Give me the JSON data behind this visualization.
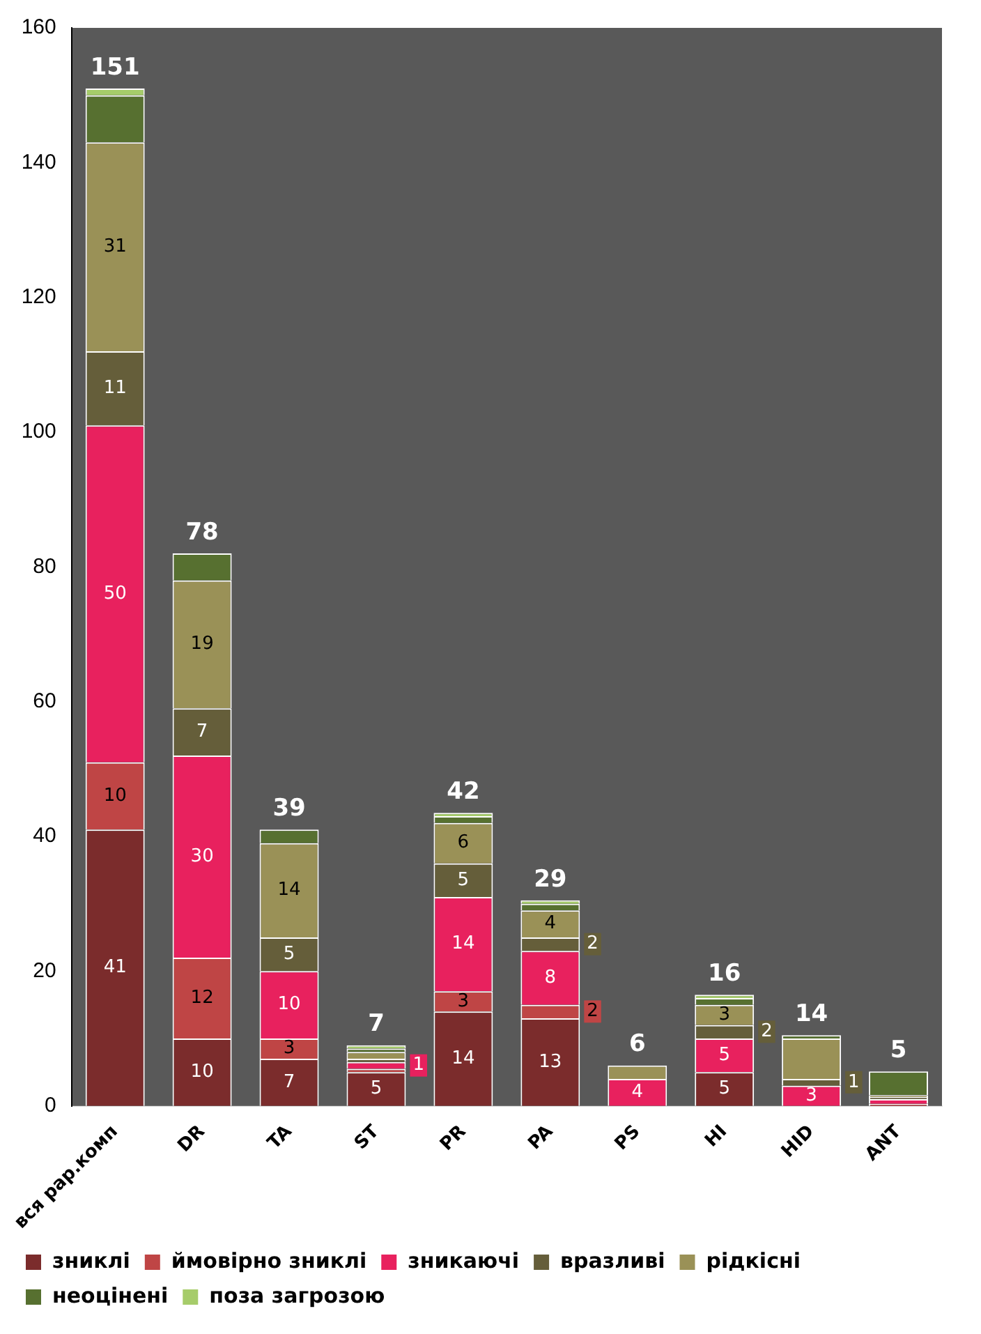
{
  "chart_data": {
    "type": "bar",
    "stacked": true,
    "categories": [
      "вся рар.комп",
      "DR",
      "TA",
      "ST",
      "PR",
      "PA",
      "PS",
      "HI",
      "HID",
      "ANT"
    ],
    "series": [
      {
        "name": "зниклі",
        "color": "#7b2c2c",
        "values": [
          41,
          10,
          7,
          5,
          14,
          13,
          null,
          5,
          null,
          null
        ],
        "value_labels": [
          "41",
          "10",
          "7",
          "5",
          "14",
          "13",
          null,
          "5",
          null,
          null
        ]
      },
      {
        "name": "ймовірно зниклі",
        "color": "#bf4545",
        "values": [
          10,
          12,
          3,
          0.5,
          3,
          2,
          null,
          null,
          null,
          0.3
        ],
        "value_labels": [
          "10",
          "12",
          "3",
          null,
          "3",
          "2",
          null,
          null,
          null,
          null
        ]
      },
      {
        "name": "зникаючі",
        "color": "#e8215e",
        "values": [
          50,
          30,
          10,
          1,
          14,
          8,
          4,
          5,
          3,
          0.7
        ],
        "value_labels": [
          "50",
          "30",
          "10",
          "1",
          "14",
          "8",
          "4",
          "5",
          "3",
          null
        ]
      },
      {
        "name": "вразливі",
        "color": "#655e3a",
        "values": [
          11,
          7,
          5,
          0.5,
          5,
          2,
          null,
          2,
          1,
          0.3
        ],
        "value_labels": [
          "11",
          "7",
          "5",
          null,
          "5",
          "2",
          null,
          "2",
          "1",
          null
        ]
      },
      {
        "name": "рідкісні",
        "color": "#9a9157",
        "values": [
          31,
          19,
          14,
          1,
          6,
          4,
          2,
          3,
          6,
          0.3
        ],
        "value_labels": [
          "31",
          "19",
          "14",
          null,
          "6",
          "4",
          null,
          "3",
          null,
          null
        ]
      },
      {
        "name": "неоцінені",
        "color": "#577030",
        "values": [
          7,
          4,
          2,
          0.5,
          1,
          1,
          null,
          1,
          0.5,
          3.5
        ],
        "value_labels": [
          null,
          null,
          null,
          null,
          null,
          null,
          null,
          null,
          null,
          null
        ]
      },
      {
        "name": "поза загрозою",
        "color": "#a6cc6a",
        "values": [
          1,
          null,
          null,
          0.5,
          0.5,
          0.5,
          null,
          0.5,
          null,
          null
        ],
        "value_labels": [
          null,
          null,
          null,
          null,
          null,
          null,
          null,
          null,
          null,
          null
        ]
      }
    ],
    "totals": [
      "151",
      "78",
      "39",
      "7",
      "42",
      "29",
      "6",
      "16",
      "14",
      "5"
    ],
    "ylim": [
      0,
      160
    ],
    "yticks": [
      0,
      20,
      40,
      60,
      80,
      100,
      120,
      140,
      160
    ],
    "grid": false,
    "legend": "bottom"
  }
}
